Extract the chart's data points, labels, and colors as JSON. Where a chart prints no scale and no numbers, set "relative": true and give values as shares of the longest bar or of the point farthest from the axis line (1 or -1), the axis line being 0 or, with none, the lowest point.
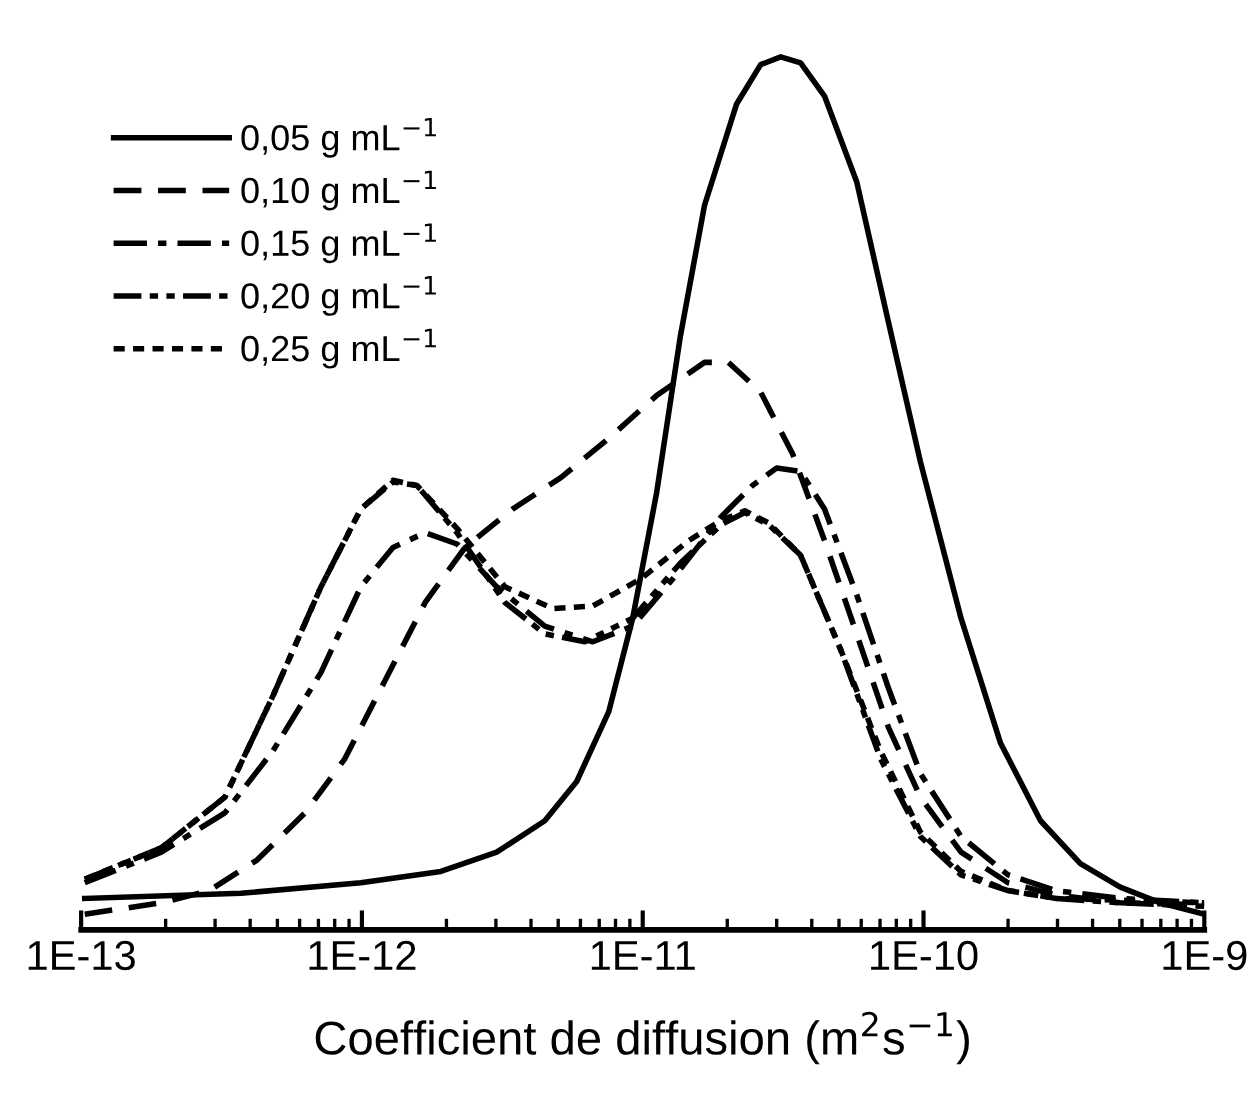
{
  "chart_data": {
    "type": "line",
    "relative": true,
    "xlabel": "Coefficient de diffusion (m$^{2}$s$^{−1}$)",
    "log": "x",
    "xlim": [
      1e-13,
      1e-09
    ],
    "xticks": [
      {
        "value": 1e-13,
        "label": "1E-13"
      },
      {
        "value": 1e-12,
        "label": "1E-12"
      },
      {
        "value": 1e-11,
        "label": "1E-11"
      },
      {
        "value": 1e-10,
        "label": "1E-10"
      },
      {
        "value": 1e-09,
        "label": "1E-9"
      }
    ],
    "tick_labels": "x",
    "legend": "top left",
    "grid": false,
    "series": [
      {
        "name": "0,05 g mL$^{−1}$",
        "color": "#000000",
        "line_style": "solid",
        "x": [
          1.03e-13,
          3.71e-13,
          9.91e-13,
          1.91e-12,
          3.02e-12,
          4.48e-12,
          5.82e-12,
          7.57e-12,
          9.21e-12,
          1.12e-11,
          1.36e-11,
          1.66e-11,
          2.16e-11,
          2.63e-11,
          3.1e-11,
          3.65e-11,
          4.44e-11,
          5.78e-11,
          7.5e-11,
          9.75e-11,
          1.36e-10,
          1.88e-10,
          2.61e-10,
          3.62e-10,
          5.02e-10,
          6.97e-10,
          1e-09
        ],
        "values": [
          0.036,
          0.042,
          0.054,
          0.067,
          0.089,
          0.125,
          0.17,
          0.25,
          0.357,
          0.5,
          0.679,
          0.83,
          0.946,
          0.991,
          1,
          0.993,
          0.955,
          0.857,
          0.696,
          0.536,
          0.357,
          0.214,
          0.125,
          0.076,
          0.049,
          0.031,
          0.018
        ]
      },
      {
        "name": "0,10 g mL$^{−1}$",
        "color": "#000000",
        "line_style": "dashed",
        "x": [
          1.03e-13,
          1.93e-13,
          2.86e-13,
          4.23e-13,
          6.27e-13,
          8.69e-13,
          1.21e-12,
          1.68e-12,
          2.33e-12,
          3.44e-12,
          5.11e-12,
          7.57e-12,
          1.12e-11,
          1.66e-11,
          2.02e-11,
          2.63e-11,
          3.42e-11,
          4.44e-11,
          5.78e-11,
          7.5e-11,
          9.75e-11,
          1.36e-10,
          2e-10,
          2.97e-10,
          5.02e-10,
          1e-09
        ],
        "values": [
          0.018,
          0.031,
          0.045,
          0.08,
          0.134,
          0.196,
          0.286,
          0.375,
          0.438,
          0.482,
          0.518,
          0.563,
          0.612,
          0.65,
          0.65,
          0.616,
          0.545,
          0.446,
          0.339,
          0.232,
          0.152,
          0.089,
          0.054,
          0.04,
          0.031,
          0.029
        ]
      },
      {
        "name": "0,15 g mL$^{−1}$",
        "color": "#000000",
        "line_style": "dashdot",
        "x": [
          1.03e-13,
          1.93e-13,
          3.25e-13,
          4.82e-13,
          7.15e-13,
          9.91e-13,
          1.29e-12,
          1.68e-12,
          2.18e-12,
          3.02e-12,
          4.48e-12,
          6.64e-12,
          9.21e-12,
          1.28e-11,
          1.9e-11,
          2.46e-11,
          3e-11,
          3.65e-11,
          4.44e-11,
          5.78e-11,
          7.5e-11,
          9.75e-11,
          1.36e-10,
          2e-10,
          2.97e-10,
          5.02e-10,
          1e-09
        ],
        "values": [
          0.054,
          0.089,
          0.134,
          0.205,
          0.295,
          0.393,
          0.438,
          0.455,
          0.442,
          0.393,
          0.348,
          0.33,
          0.348,
          0.402,
          0.473,
          0.509,
          0.529,
          0.525,
          0.482,
          0.384,
          0.277,
          0.179,
          0.107,
          0.063,
          0.045,
          0.036,
          0.031
        ]
      },
      {
        "name": "0,20 g mL$^{−1}$",
        "color": "#000000",
        "line_style": "dashdotdot",
        "x": [
          1.03e-13,
          1.93e-13,
          3.25e-13,
          4.82e-13,
          7.15e-13,
          9.91e-13,
          1.29e-12,
          1.57e-12,
          2.18e-12,
          3.23e-12,
          4.48e-12,
          6.22e-12,
          9.21e-12,
          1.36e-11,
          1.9e-11,
          2.31e-11,
          2.81e-11,
          3.65e-11,
          5.07e-11,
          7.03e-11,
          9.75e-11,
          1.36e-10,
          2e-10,
          2.97e-10,
          5.02e-10,
          1e-09
        ],
        "values": [
          0.058,
          0.094,
          0.152,
          0.268,
          0.393,
          0.482,
          0.513,
          0.509,
          0.455,
          0.375,
          0.339,
          0.33,
          0.357,
          0.42,
          0.464,
          0.478,
          0.464,
          0.429,
          0.321,
          0.196,
          0.107,
          0.063,
          0.045,
          0.036,
          0.031,
          0.027
        ]
      },
      {
        "name": "0,25 g mL$^{−1}$",
        "color": "#000000",
        "line_style": "dotted",
        "x": [
          1.03e-13,
          1.93e-13,
          3.25e-13,
          4.82e-13,
          7.15e-13,
          9.91e-13,
          1.29e-12,
          1.57e-12,
          2.18e-12,
          3.23e-12,
          4.79e-12,
          6.64e-12,
          9.84e-12,
          1.46e-11,
          1.9e-11,
          2.31e-11,
          2.81e-11,
          3.65e-11,
          5.07e-11,
          7.03e-11,
          9.75e-11,
          1.36e-10,
          2e-10,
          2.97e-10,
          5.02e-10,
          1e-09
        ],
        "values": [
          0.058,
          0.094,
          0.152,
          0.268,
          0.393,
          0.482,
          0.515,
          0.509,
          0.46,
          0.393,
          0.368,
          0.371,
          0.402,
          0.446,
          0.469,
          0.48,
          0.466,
          0.429,
          0.321,
          0.205,
          0.112,
          0.067,
          0.045,
          0.036,
          0.034,
          0.031
        ]
      }
    ]
  }
}
